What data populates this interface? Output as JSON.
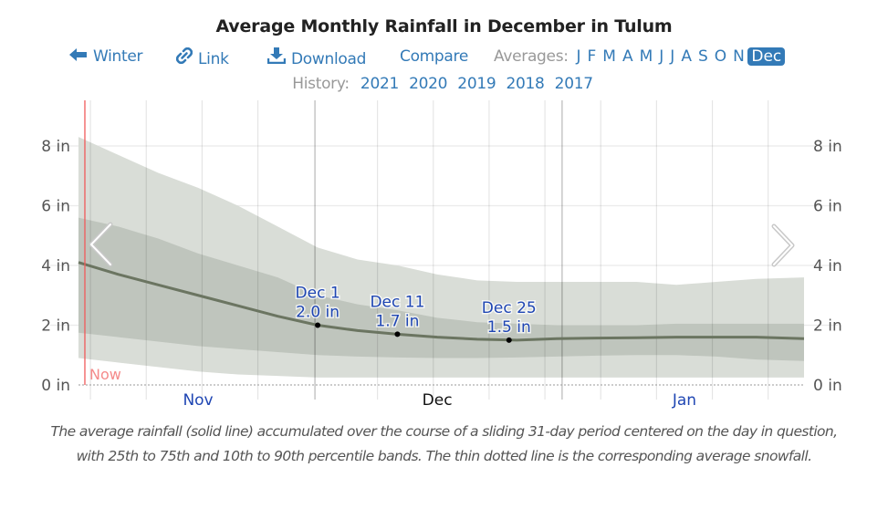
{
  "title": "Average Monthly Rainfall in December in Tulum",
  "toolbar": {
    "back": {
      "label": "Winter",
      "icon": "arrow-left-icon"
    },
    "link": {
      "label": "Link",
      "icon": "link-icon"
    },
    "download": {
      "label": "Download",
      "icon": "download-icon"
    },
    "compare": {
      "label": "Compare"
    },
    "averages_label": "Averages:",
    "months": [
      "J",
      "F",
      "M",
      "A",
      "M",
      "J",
      "J",
      "A",
      "S",
      "O",
      "N",
      "Dec"
    ],
    "active_month": "Dec"
  },
  "history": {
    "label": "History:",
    "years": [
      "2021",
      "2020",
      "2019",
      "2018",
      "2017"
    ]
  },
  "colors": {
    "link": "#337ab7",
    "band_10_90": "#d9ddd7",
    "band_25_75": "#bfc5bd",
    "mean_line": "#6b7561",
    "now_line": "#f05a5a",
    "annotation_text": "#1f46b3"
  },
  "chart_data": {
    "type": "area",
    "title": "Average Monthly Rainfall in December in Tulum",
    "xlabel": "",
    "ylabel": "",
    "x_unit": "day index from Nov 1",
    "x_range": [
      0,
      91
    ],
    "ylim": [
      0,
      8
    ],
    "y_ticks": [
      0,
      2,
      4,
      6,
      8
    ],
    "y_tick_labels": [
      "0 in",
      "2 in",
      "4 in",
      "6 in",
      "8 in"
    ],
    "x_month_labels": [
      {
        "label": "Nov",
        "day": 15,
        "highlight": false
      },
      {
        "label": "Dec",
        "day": 45,
        "highlight": true
      },
      {
        "label": "Jan",
        "day": 76,
        "highlight": false
      }
    ],
    "month_boundaries": [
      30,
      61
    ],
    "grid": true,
    "now_marker": {
      "label": "Now",
      "day": 0.8
    },
    "x": [
      0,
      5,
      10,
      15,
      20,
      25,
      30,
      35,
      40,
      45,
      50,
      55,
      60,
      65,
      70,
      75,
      80,
      85,
      91
    ],
    "series": [
      {
        "name": "10th to 90th percentile (upper)",
        "values": [
          8.3,
          7.7,
          7.1,
          6.6,
          6.0,
          5.3,
          4.6,
          4.2,
          4.0,
          3.7,
          3.5,
          3.45,
          3.45,
          3.45,
          3.45,
          3.35,
          3.45,
          3.55,
          3.6
        ]
      },
      {
        "name": "75th percentile",
        "values": [
          5.6,
          5.3,
          4.9,
          4.4,
          4.0,
          3.6,
          3.0,
          2.7,
          2.5,
          2.25,
          2.1,
          2.05,
          2.0,
          2.0,
          2.0,
          2.05,
          2.05,
          2.05,
          2.05
        ]
      },
      {
        "name": "Average rainfall",
        "values": [
          4.1,
          3.7,
          3.35,
          3.0,
          2.65,
          2.3,
          2.0,
          1.82,
          1.7,
          1.6,
          1.53,
          1.5,
          1.55,
          1.57,
          1.58,
          1.6,
          1.6,
          1.6,
          1.55
        ]
      },
      {
        "name": "25th percentile",
        "values": [
          1.75,
          1.6,
          1.45,
          1.3,
          1.2,
          1.1,
          1.0,
          0.95,
          0.92,
          0.9,
          0.9,
          0.92,
          0.95,
          0.98,
          1.0,
          1.0,
          0.95,
          0.85,
          0.8
        ]
      },
      {
        "name": "10th to 90th percentile (lower)",
        "values": [
          0.9,
          0.75,
          0.6,
          0.45,
          0.35,
          0.3,
          0.25,
          0.25,
          0.25,
          0.25,
          0.25,
          0.25,
          0.25,
          0.25,
          0.25,
          0.25,
          0.25,
          0.25,
          0.25
        ]
      },
      {
        "name": "Average snowfall",
        "values": [
          0,
          0,
          0,
          0,
          0,
          0,
          0,
          0,
          0,
          0,
          0,
          0,
          0,
          0,
          0,
          0,
          0,
          0,
          0
        ]
      }
    ],
    "annotations": [
      {
        "label": "Dec 1",
        "value_label": "2.0 in",
        "day": 30,
        "value": 2.0
      },
      {
        "label": "Dec 11",
        "value_label": "1.7 in",
        "day": 40,
        "value": 1.7
      },
      {
        "label": "Dec 25",
        "value_label": "1.5 in",
        "day": 54,
        "value": 1.5
      }
    ]
  },
  "nav": {
    "prev": "previous-chevron",
    "next": "next-chevron"
  },
  "caption": "The average rainfall (solid line) accumulated over the course of a sliding 31-day period centered on the day in question, with 25th to 75th and 10th to 90th percentile bands. The thin dotted line is the corresponding average snowfall."
}
